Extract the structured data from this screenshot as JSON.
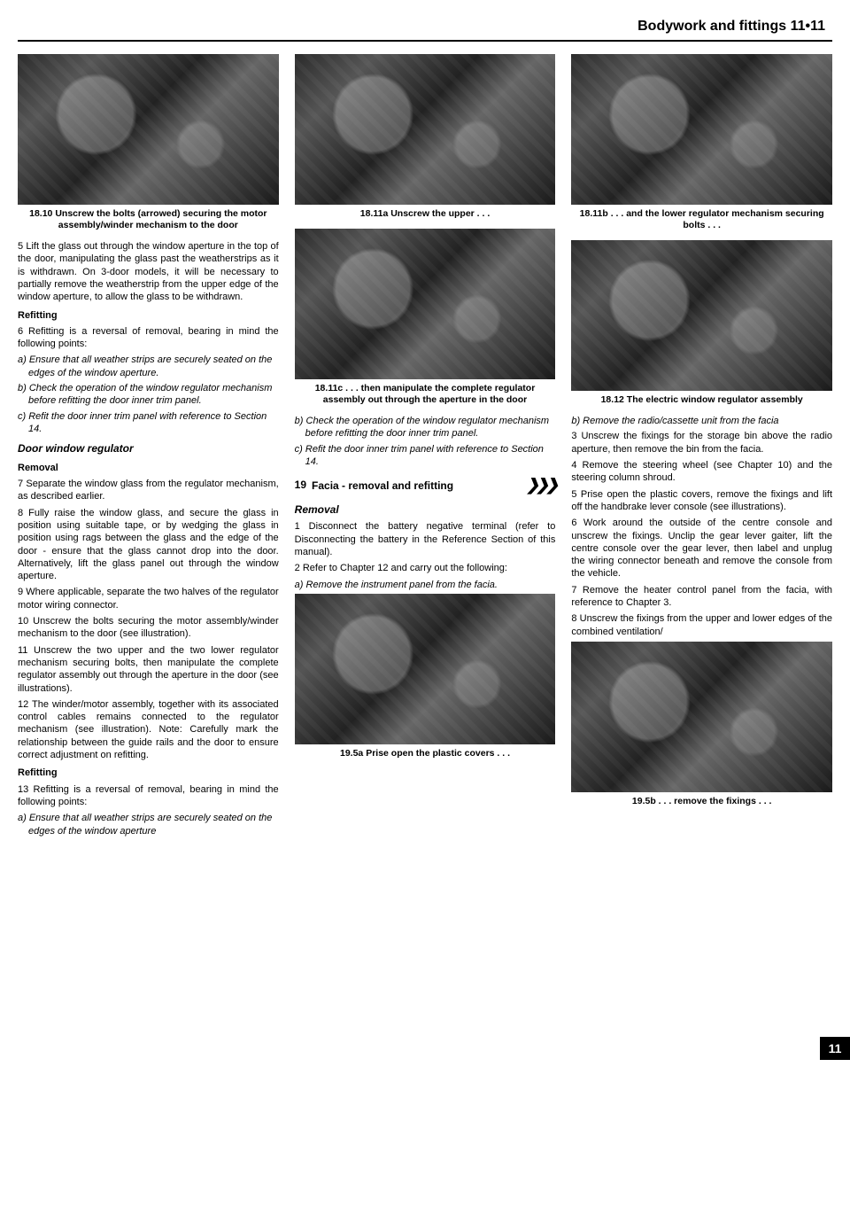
{
  "header": {
    "title": "Bodywork and fittings  11•11"
  },
  "sideTab": "11",
  "col1": {
    "cap1": "18.10  Unscrew the bolts (arrowed) securing the motor assembly/winder mechanism to the door",
    "p5": "5 Lift the glass out through the window aperture in the top of the door, manipulating the glass past the weatherstrips as it is withdrawn. On 3-door models, it will be necessary to partially remove the weatherstrip from the upper edge of the window aperture, to allow the glass to be withdrawn.",
    "refitHead": "Refitting",
    "p6intro": "6 Refitting is a reversal of removal, bearing in mind the following points:",
    "p6a": "a) Ensure that all weather strips are securely seated on the edges of the window aperture.",
    "p6b": "b) Check the operation of the window regulator mechanism before refitting the door inner trim panel.",
    "p6c": "c) Refit the door inner trim panel with reference to Section 14.",
    "dwrHead": "Door window regulator",
    "removalHead": "Removal",
    "p7": "7 Separate the window glass from the regulator mechanism, as described earlier.",
    "p8": "8 Fully raise the window glass, and secure the glass in position using suitable tape, or by wedging the glass in position using rags between the glass and the edge of the door - ensure that the glass cannot drop into the door. Alternatively, lift the glass panel out through the window aperture.",
    "p9": "9 Where applicable, separate the two halves of the regulator motor wiring connector.",
    "p10": "10 Unscrew the bolts securing the motor assembly/winder mechanism to the door (see illustration).",
    "p11": "11 Unscrew the two upper and the two lower regulator mechanism securing bolts, then manipulate the complete regulator assembly out through the aperture in the door (see illustrations).",
    "p12": "12 The winder/motor assembly, together with its associated control cables remains connected to the regulator mechanism (see illustration). Note: Carefully mark the relationship between the guide rails and the door to ensure correct adjustment on refitting.",
    "refitHead2": "Refitting",
    "p13intro": "13 Refitting is a reversal of removal, bearing in mind the following points:",
    "p13a": "a) Ensure that all weather strips are securely seated on the edges of the window aperture"
  },
  "col2": {
    "cap11a": "18.11a  Unscrew the upper . . .",
    "cap11c": "18.11c  . . . then manipulate the complete regulator assembly out through the aperture in the door",
    "p13b": "b) Check the operation of the window regulator mechanism before refitting the door inner trim panel.",
    "p13c": "c) Refit the door inner trim panel with reference to Section 14.",
    "secNum": "19",
    "secTitle": "Facia - removal and refitting",
    "secDiff": "❯❯❯",
    "removalHead": "Removal",
    "p1": "1 Disconnect the battery negative terminal (refer to Disconnecting the battery in the Reference Section of this manual).",
    "p2": "2 Refer to Chapter 12 and carry out the following:",
    "p2a": "a) Remove the instrument panel from the facia.",
    "cap195a": "19.5a  Prise open the plastic covers . . ."
  },
  "col3": {
    "cap11b": "18.11b  . . . and the lower regulator mechanism securing bolts . . .",
    "cap1812": "18.12  The electric window regulator assembly",
    "p2b": "b) Remove the radio/cassette unit from the facia",
    "p3": "3 Unscrew the fixings for the storage bin above the radio aperture, then remove the bin from the facia.",
    "p4": "4 Remove the steering wheel (see Chapter 10) and the steering column shroud.",
    "p5": "5 Prise open the plastic covers, remove the fixings and lift off the handbrake lever console (see illustrations).",
    "p6": "6 Work around the outside of the centre console and unscrew the fixings. Unclip the gear lever gaiter, lift the centre console over the gear lever, then label and unplug the wiring connector beneath and remove the console from the vehicle.",
    "p7": "7 Remove the heater control panel from the facia, with reference to Chapter 3.",
    "p8": "8 Unscrew the fixings from the upper and lower edges of the combined ventilation/",
    "cap195b": "19.5b  . . . remove the fixings . . ."
  }
}
